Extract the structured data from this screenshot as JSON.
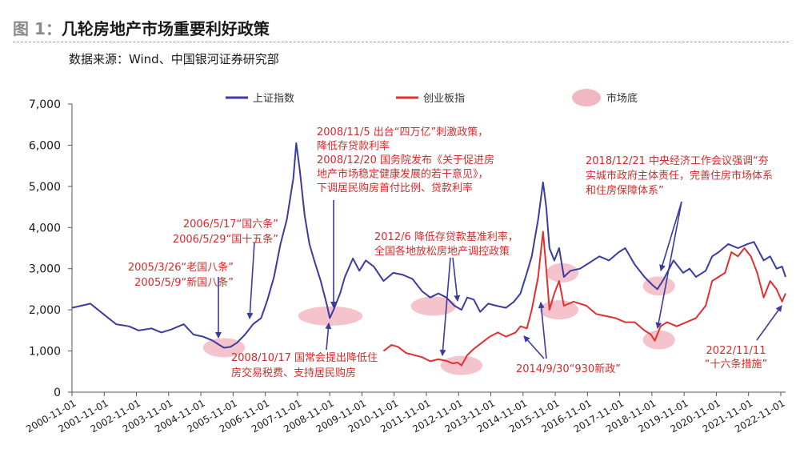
{
  "figure": {
    "label": "图 1：",
    "title": "几轮房地产市场重要利好政策",
    "source": "数据来源：Wind、中国银河证券研究部"
  },
  "chart_data": {
    "type": "line",
    "yticks": [
      "0",
      "1,000",
      "2,000",
      "3,000",
      "4,000",
      "5,000",
      "6,000",
      "7,000"
    ],
    "ylim": [
      0,
      7000
    ],
    "xticks": [
      "2000-11-01",
      "2001-11-01",
      "2002-11-01",
      "2003-11-01",
      "2004-11-01",
      "2005-11-01",
      "2006-11-01",
      "2007-11-01",
      "2008-11-01",
      "2009-11-01",
      "2010-11-01",
      "2011-11-01",
      "2012-11-01",
      "2013-11-01",
      "2014-11-01",
      "2015-11-01",
      "2016-11-01",
      "2017-11-01",
      "2018-11-01",
      "2019-11-01",
      "2020-11-01",
      "2021-11-01",
      "2022-11-01"
    ],
    "legend": {
      "sse": "上证指数",
      "gem": "创业板指",
      "bottom": "市场底"
    },
    "colors": {
      "sse": "#3b3ba0",
      "gem": "#e03030",
      "bottom": "#f2b8c2",
      "annotation": "#d42a2a",
      "arrow": "#3b3ba0",
      "axis": "#555555"
    },
    "series": [
      {
        "name": "上证指数",
        "x": [
          2000.83,
          2001.4,
          2001.8,
          2002.2,
          2002.6,
          2002.9,
          2003.3,
          2003.6,
          2003.9,
          2004.3,
          2004.6,
          2004.9,
          2005.2,
          2005.4,
          2005.55,
          2005.75,
          2005.95,
          2006.2,
          2006.45,
          2006.7,
          2006.9,
          2007.1,
          2007.3,
          2007.5,
          2007.7,
          2007.79,
          2007.9,
          2008.05,
          2008.2,
          2008.35,
          2008.55,
          2008.75,
          2008.83,
          2008.95,
          2009.15,
          2009.3,
          2009.55,
          2009.75,
          2009.95,
          2010.2,
          2010.5,
          2010.8,
          2011.1,
          2011.4,
          2011.7,
          2011.95,
          2012.2,
          2012.45,
          2012.7,
          2012.92,
          2013.1,
          2013.3,
          2013.5,
          2013.75,
          2014.0,
          2014.3,
          2014.55,
          2014.75,
          2014.95,
          2015.1,
          2015.3,
          2015.45,
          2015.55,
          2015.65,
          2015.8,
          2015.95,
          2016.1,
          2016.3,
          2016.6,
          2016.9,
          2017.2,
          2017.5,
          2017.8,
          2018.0,
          2018.3,
          2018.6,
          2018.85,
          2019.0,
          2019.2,
          2019.5,
          2019.8,
          2020.0,
          2020.2,
          2020.5,
          2020.7,
          2020.9,
          2021.2,
          2021.5,
          2021.8,
          2022.0,
          2022.3,
          2022.5,
          2022.7,
          2022.87,
          2022.98
        ],
        "values": [
          2050,
          2150,
          1900,
          1650,
          1600,
          1500,
          1550,
          1450,
          1520,
          1650,
          1400,
          1350,
          1250,
          1150,
          1080,
          1100,
          1200,
          1400,
          1650,
          1800,
          2250,
          2800,
          3600,
          4200,
          5200,
          6050,
          5400,
          4300,
          3600,
          3200,
          2700,
          2100,
          1800,
          2000,
          2400,
          2800,
          3250,
          2950,
          3200,
          3050,
          2700,
          2900,
          2850,
          2750,
          2450,
          2300,
          2400,
          2300,
          2100,
          2000,
          2300,
          2250,
          1950,
          2150,
          2100,
          2050,
          2200,
          2400,
          2900,
          3300,
          4200,
          5100,
          4500,
          3500,
          3200,
          3500,
          2800,
          2950,
          3000,
          3150,
          3300,
          3200,
          3400,
          3500,
          3100,
          2800,
          2600,
          2500,
          2750,
          3200,
          2900,
          3000,
          2800,
          2950,
          3300,
          3400,
          3600,
          3500,
          3600,
          3650,
          3200,
          3300,
          3000,
          3050,
          2800
        ]
      },
      {
        "name": "创业板指",
        "x": [
          2010.5,
          2010.75,
          2010.95,
          2011.2,
          2011.45,
          2011.7,
          2011.95,
          2012.2,
          2012.45,
          2012.65,
          2012.8,
          2012.92,
          2013.1,
          2013.3,
          2013.55,
          2013.8,
          2014.05,
          2014.3,
          2014.6,
          2014.75,
          2014.95,
          2015.1,
          2015.3,
          2015.45,
          2015.55,
          2015.65,
          2015.8,
          2015.95,
          2016.1,
          2016.4,
          2016.8,
          2017.1,
          2017.4,
          2017.7,
          2018.0,
          2018.3,
          2018.6,
          2018.8,
          2018.92,
          2019.1,
          2019.3,
          2019.6,
          2019.9,
          2020.2,
          2020.5,
          2020.7,
          2020.9,
          2021.1,
          2021.3,
          2021.5,
          2021.7,
          2021.9,
          2022.1,
          2022.3,
          2022.5,
          2022.7,
          2022.87,
          2022.98
        ],
        "values": [
          1000,
          1150,
          1100,
          950,
          900,
          850,
          750,
          800,
          760,
          700,
          720,
          650,
          900,
          1050,
          1200,
          1350,
          1450,
          1350,
          1450,
          1600,
          1550,
          2000,
          2800,
          3900,
          3000,
          2000,
          2400,
          2700,
          2100,
          2200,
          2100,
          1900,
          1850,
          1800,
          1700,
          1700,
          1500,
          1400,
          1250,
          1600,
          1700,
          1600,
          1700,
          1800,
          2100,
          2700,
          2800,
          2900,
          3400,
          3300,
          3500,
          3300,
          2900,
          2300,
          2700,
          2500,
          2200,
          2400
        ]
      }
    ],
    "bottoms": [
      {
        "x": 2005.55,
        "y": 1080,
        "w": 1.0
      },
      {
        "x": 2008.85,
        "y": 1850,
        "w": 1.7
      },
      {
        "x": 2012.05,
        "y": 2090,
        "w": 1.1
      },
      {
        "x": 2012.92,
        "y": 650,
        "w": 1.0
      },
      {
        "x": 2015.95,
        "y": 2000,
        "w": 0.9
      },
      {
        "x": 2016.05,
        "y": 2900,
        "w": 0.7
      },
      {
        "x": 2019.05,
        "y": 2580,
        "w": 0.7
      },
      {
        "x": 2019.05,
        "y": 1270,
        "w": 0.7
      }
    ],
    "annotations": [
      {
        "id": "a2005",
        "lines": [
          "2005/3/26“老国八条”",
          "2005/5/9“新国八条”"
        ],
        "anchor": "end"
      },
      {
        "id": "a2006",
        "lines": [
          "2006/5/17“国六条”",
          "2006/5/29“国十五条”"
        ],
        "anchor": "end"
      },
      {
        "id": "a2008a",
        "lines": [
          "2008/11/5 出台“四万亿”刺激政策，",
          "降低存贷款利率",
          "2008/12/20 国务院发布《关于促进房",
          "地产市场稳定健康发展的若干意见》，",
          "下调居民购房首付比例、贷款利率"
        ],
        "anchor": "start"
      },
      {
        "id": "a2008b",
        "lines": [
          "2008/10/17 国常会提出降低住",
          "房交易税费、支持居民购房"
        ],
        "anchor": "start"
      },
      {
        "id": "a2012",
        "lines": [
          "2012/6 降低存贷款基准利率，",
          "全国各地放松房地产调控政策"
        ],
        "anchor": "start"
      },
      {
        "id": "a2014",
        "lines": [
          "2014/9/30“930新政”"
        ],
        "anchor": "start"
      },
      {
        "id": "a2018",
        "lines": [
          "2018/12/21 中央经济工作会议强调“夯",
          "实城市政府主体责任，完善住房市场体系",
          "和住房保障体系”"
        ],
        "anchor": "start"
      },
      {
        "id": "a2022",
        "lines": [
          "2022/11/11",
          "“十六条措施”"
        ],
        "anchor": "middle"
      }
    ]
  }
}
